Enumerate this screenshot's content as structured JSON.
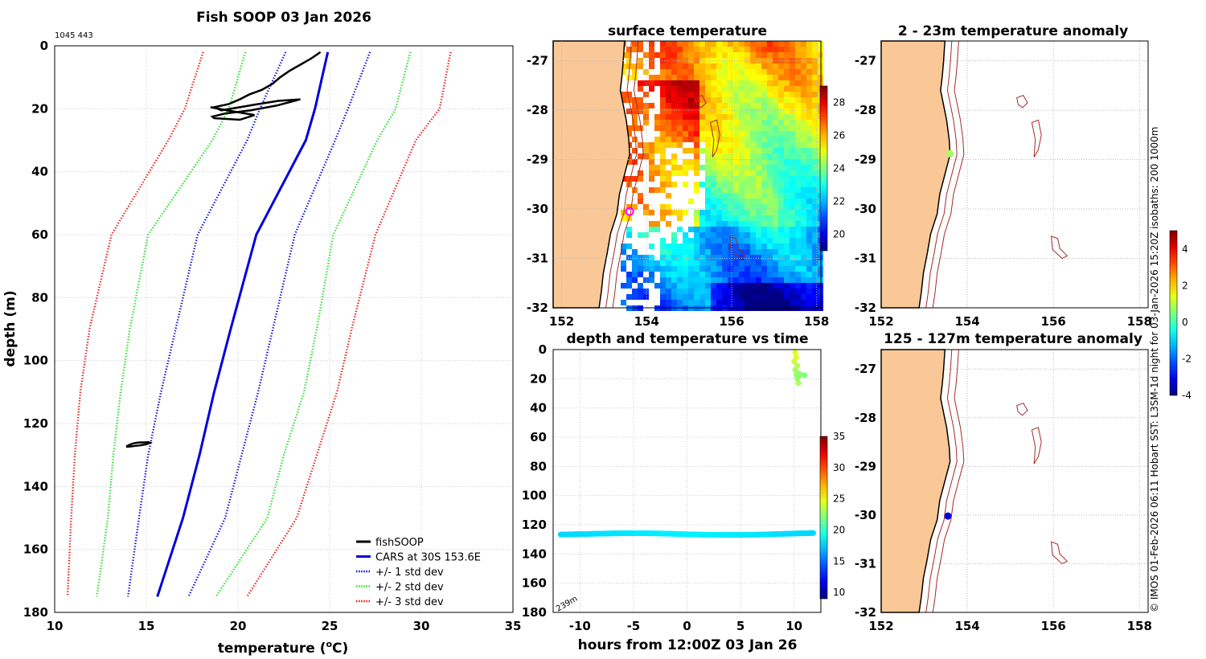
{
  "colors": {
    "land": "#f9c896",
    "fish": "#000000",
    "cars": "#0000dd",
    "sd1": "#0000dd",
    "sd2": "#22dd22",
    "sd3": "#ee1111",
    "iso": "#a52a2a"
  },
  "chart_data": [
    {
      "id": "profile",
      "type": "line",
      "title": "Fish SOOP 03 Jan 2026",
      "code": "1045 443",
      "xlabel": "temperature (°C)",
      "xlabel_main": "temperature (",
      "xlabel_sup": "o",
      "xlabel_tail": "C)",
      "ylabel": "depth (m)",
      "xlim": [
        10,
        35
      ],
      "ylim": [
        0,
        180
      ],
      "y_reversed": true,
      "xticks": [
        10,
        15,
        20,
        25,
        30,
        35
      ],
      "yticks": [
        0,
        20,
        40,
        60,
        80,
        100,
        120,
        140,
        160,
        180
      ],
      "depth": [
        2,
        20,
        30,
        60,
        90,
        110,
        130,
        150,
        175
      ],
      "series": [
        {
          "name": "CARS at 30S 153.6E",
          "style": "solid",
          "color": "cars",
          "values": [
            24.9,
            24.2,
            23.7,
            21.0,
            19.6,
            18.7,
            17.9,
            17.0,
            15.6
          ]
        },
        {
          "name": "+/- 1 std dev",
          "style": "dotted",
          "color": "sd1",
          "values": [
            22.6,
            21.2,
            20.5,
            17.8,
            16.6,
            15.8,
            15.1,
            14.6,
            14.0
          ]
        },
        {
          "name": "+/- 1 std dev (upper)",
          "style": "dotted",
          "color": "sd1",
          "values": [
            27.2,
            26.0,
            25.3,
            23.1,
            21.9,
            21.1,
            20.2,
            19.3,
            17.3
          ]
        },
        {
          "name": "+/- 2 std dev",
          "style": "dotted",
          "color": "sd2",
          "values": [
            20.4,
            19.5,
            18.6,
            15.1,
            14.1,
            13.6,
            13.2,
            12.9,
            12.3
          ]
        },
        {
          "name": "+/- 2 std dev (upper)",
          "style": "dotted",
          "color": "sd2",
          "values": [
            29.4,
            28.6,
            27.6,
            25.2,
            24.3,
            23.6,
            22.5,
            21.6,
            18.8
          ]
        },
        {
          "name": "+/- 3 std dev",
          "style": "dotted",
          "color": "sd3",
          "values": [
            18.1,
            17.1,
            16.2,
            13.1,
            11.9,
            11.4,
            11.1,
            10.9,
            10.7
          ]
        },
        {
          "name": "+/- 3 std dev (upper)",
          "style": "dotted",
          "color": "sd3",
          "values": [
            31.6,
            31.0,
            29.7,
            27.5,
            26.2,
            25.4,
            24.3,
            23.2,
            20.5
          ]
        }
      ],
      "fish_upper": [
        [
          24.5,
          2
        ],
        [
          24,
          4
        ],
        [
          23.4,
          6
        ],
        [
          22.8,
          8
        ],
        [
          22.3,
          10
        ],
        [
          21.9,
          12
        ],
        [
          21.3,
          14
        ],
        [
          20.6,
          15.5
        ],
        [
          20.1,
          17
        ],
        [
          19.5,
          18.5
        ],
        [
          18.7,
          19.5
        ],
        [
          19.1,
          20.5
        ],
        [
          21.1,
          18.5
        ],
        [
          22.2,
          17.5
        ],
        [
          23.4,
          17
        ],
        [
          22.1,
          19
        ],
        [
          20.7,
          20.5
        ],
        [
          19.3,
          21.5
        ],
        [
          18.6,
          22.5
        ],
        [
          18.7,
          23
        ],
        [
          20.1,
          23.5
        ],
        [
          20.9,
          22
        ],
        [
          19.4,
          20.5
        ],
        [
          18.5,
          19.5
        ]
      ],
      "fish_lower": [
        [
          13.9,
          127.3
        ],
        [
          14.1,
          126.7
        ],
        [
          14.3,
          126.3
        ],
        [
          14.5,
          126.1
        ],
        [
          14.7,
          126
        ],
        [
          14.9,
          126
        ],
        [
          15.1,
          125.9
        ],
        [
          15.2,
          126.1
        ],
        [
          15.0,
          126.6
        ],
        [
          14.7,
          126.9
        ],
        [
          14.4,
          127.1
        ],
        [
          14.1,
          127.3
        ],
        [
          13.9,
          127.4
        ]
      ],
      "legend": [
        {
          "label": "fishSOOP",
          "color": "fish",
          "style": "solid"
        },
        {
          "label": "CARS at 30S 153.6E",
          "color": "cars",
          "style": "solid"
        },
        {
          "label": "+/- 1 std dev",
          "color": "sd1",
          "style": "dotted"
        },
        {
          "label": "+/- 2 std dev",
          "color": "sd2",
          "style": "dotted"
        },
        {
          "label": "+/- 3 std dev",
          "color": "sd3",
          "style": "dotted"
        }
      ],
      "legend_position": "bottom-right"
    },
    {
      "id": "sst_map",
      "type": "heatmap",
      "title": "surface temperature",
      "xlim": [
        151.8,
        158.1
      ],
      "ylim": [
        -32,
        -26.6
      ],
      "xticks": [
        152,
        154,
        156,
        158
      ],
      "yticks": [
        -27,
        -28,
        -29,
        -30,
        -31,
        -32
      ],
      "colorbar": {
        "min": 19,
        "max": 29,
        "ticks": [
          20,
          22,
          24,
          26,
          28
        ]
      },
      "marker": {
        "lon": 153.6,
        "lat": -30.05,
        "color": "#ff00ff"
      }
    },
    {
      "id": "timeseries",
      "type": "scatter",
      "title": "depth and temperature vs time",
      "xlabel": "hours from 12:00Z 03 Jan 26",
      "xlim": [
        -12.5,
        12.5
      ],
      "ylim": [
        0,
        180
      ],
      "y_reversed": true,
      "xticks": [
        -10,
        -5,
        0,
        5,
        10
      ],
      "yticks": [
        0,
        20,
        40,
        60,
        80,
        100,
        120,
        140,
        160,
        180
      ],
      "colorbar": {
        "min": 9,
        "max": 35,
        "ticks": [
          10,
          15,
          20,
          25,
          30,
          35
        ]
      },
      "annotation": "239m",
      "deep_track": {
        "t_start": -11.8,
        "t_end": 11.8,
        "depth": 126.5,
        "temp": 18
      },
      "shallow_track": {
        "t": [
          10.1,
          10.2,
          10.0,
          10.3,
          10.1,
          10.4,
          10.2,
          10.6,
          11.0,
          10.5,
          10.3,
          10.4
        ],
        "depth": [
          2,
          5,
          8,
          11,
          14,
          16,
          17,
          17,
          17.5,
          18,
          20,
          23
        ],
        "temp": [
          24.5,
          24.3,
          24,
          23.5,
          23,
          22.8,
          22.5,
          22.3,
          22,
          22.2,
          22.6,
          23
        ]
      }
    },
    {
      "id": "anom_shallow",
      "type": "map",
      "title": "2 - 23m temperature anomaly",
      "xlim": [
        152,
        158.2
      ],
      "ylim": [
        -32,
        -26.6
      ],
      "xticks": [
        152,
        154,
        156,
        158
      ],
      "yticks": [
        -27,
        -28,
        -29,
        -30,
        -31,
        -32
      ],
      "point": {
        "lon": 153.6,
        "lat": -28.88,
        "anomaly": 0.8
      }
    },
    {
      "id": "anom_deep",
      "type": "map",
      "title": "125 - 127m temperature anomaly",
      "xlim": [
        152,
        158.2
      ],
      "ylim": [
        -32,
        -26.6
      ],
      "xticks": [
        152,
        154,
        156,
        158
      ],
      "yticks": [
        -27,
        -28,
        -29,
        -30,
        -31,
        -32
      ],
      "point": {
        "lon": 153.55,
        "lat": -30.02,
        "anomaly": -3.2
      }
    }
  ],
  "anomaly_colorbar": {
    "min": -4,
    "max": 5,
    "ticks": [
      4,
      2,
      0,
      -2,
      -4
    ]
  },
  "credit": "© IMOS 01-Feb-2026 06:11 Hobart SST: L3SM-1d night for 03-Jan-2026 15:20Z isobaths: 200  1000m"
}
